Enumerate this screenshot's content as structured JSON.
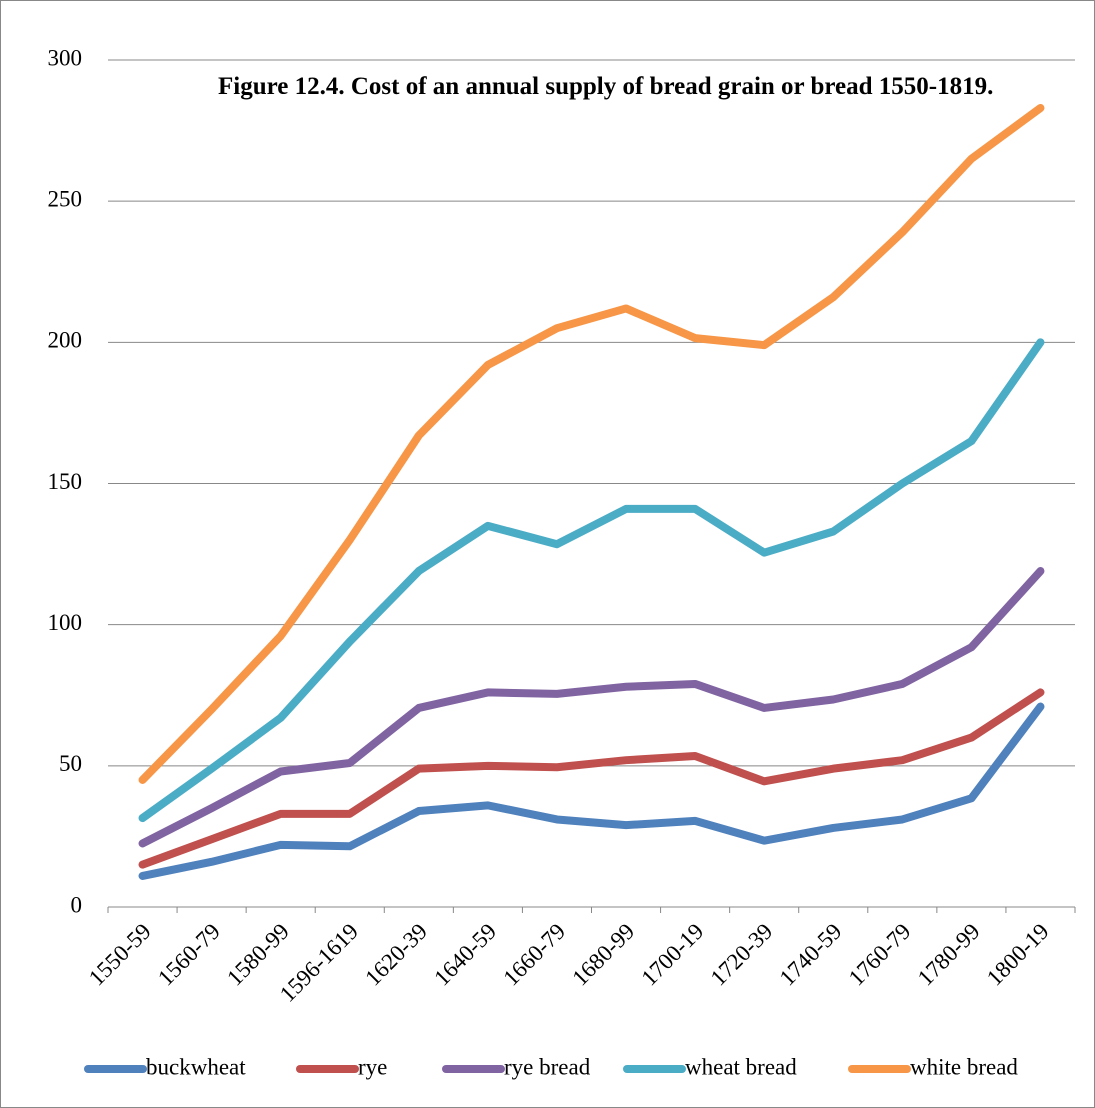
{
  "chart_data": {
    "type": "line",
    "title": "Figure 12.4.  Cost of an annual supply of bread grain or bread 1550-1819.",
    "categories": [
      "1550-59",
      "1560-79",
      "1580-99",
      "1596-1619",
      "1620-39",
      "1640-59",
      "1660-79",
      "1680-99",
      "1700-19",
      "1720-39",
      "1740-59",
      "1760-79",
      "1780-99",
      "1800-19"
    ],
    "series": [
      {
        "name": "buckwheat",
        "color": "#4f81bd",
        "values": [
          11,
          16,
          22,
          21.5,
          34,
          36,
          31,
          29,
          30.5,
          23.5,
          28,
          31,
          38.5,
          71
        ]
      },
      {
        "name": "rye",
        "color": "#c0504d",
        "values": [
          15,
          24,
          33,
          33,
          49,
          50,
          49.5,
          52,
          53.5,
          44.5,
          49,
          52,
          60,
          76
        ]
      },
      {
        "name": "rye bread",
        "color": "#8064a2",
        "values": [
          22.5,
          35,
          48,
          51,
          70.5,
          76,
          75.5,
          78,
          79,
          70.5,
          73.5,
          79,
          92,
          119
        ]
      },
      {
        "name": "wheat bread",
        "color": "#4bacc6",
        "values": [
          31.5,
          49,
          67,
          94,
          119,
          135,
          128.5,
          141,
          141,
          125.5,
          133,
          150,
          165,
          200
        ]
      },
      {
        "name": "white bread",
        "color": "#f79646",
        "values": [
          45,
          70,
          96,
          130,
          167,
          192,
          205,
          212,
          201.5,
          199,
          216,
          239,
          265,
          283
        ]
      }
    ],
    "ylim": [
      0,
      300
    ],
    "yticks": [
      0,
      50,
      100,
      150,
      200,
      250,
      300
    ],
    "grid": true,
    "legend": "bottom"
  }
}
